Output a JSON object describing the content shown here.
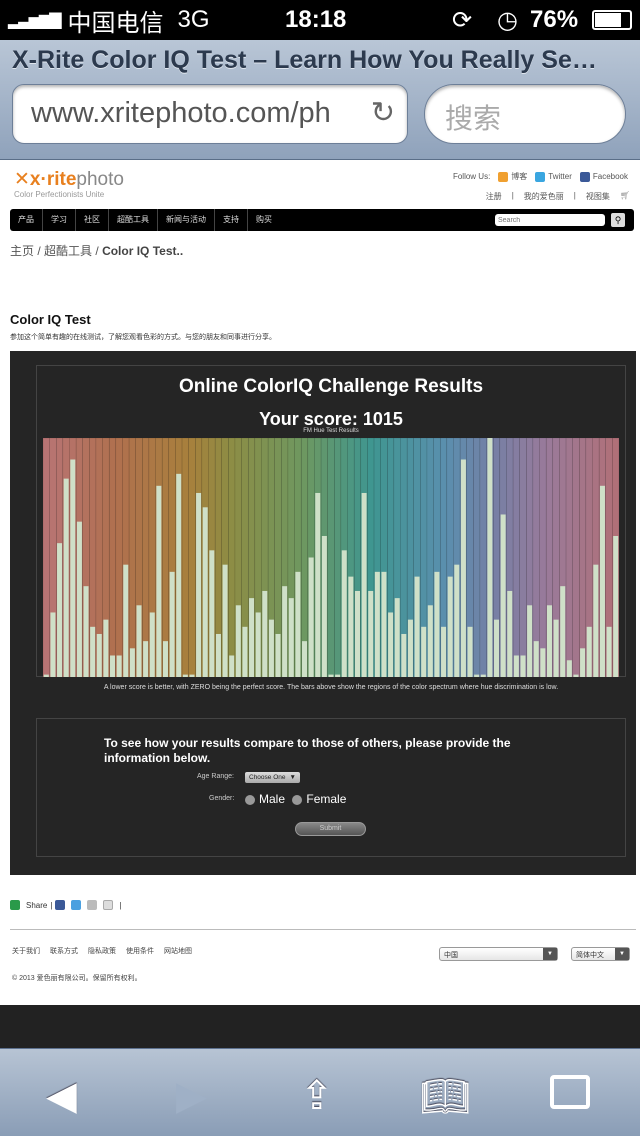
{
  "status_bar": {
    "carrier": "中国电信",
    "network": "3G",
    "time": "18:18",
    "battery": "76%"
  },
  "browser": {
    "page_title": "X-Rite Color IQ Test – Learn How You Really Se…",
    "url": "www.xritephoto.com/ph",
    "search_placeholder": "搜索"
  },
  "site": {
    "logo": {
      "brand": "x·rite",
      "product": "photo",
      "tagline": "Color Perfectionists Unite"
    },
    "follow_label": "Follow Us:",
    "follow": [
      "博客",
      "Twitter",
      "Facebook"
    ],
    "user_links": [
      "注册",
      "我的爱色丽",
      "视图集"
    ],
    "nav": [
      "产品",
      "学习",
      "社区",
      "超酷工具",
      "新闻与活动",
      "支持",
      "购买"
    ],
    "search_placeholder": "Search",
    "breadcrumb": [
      "主页",
      "超酷工具",
      "Color IQ Test.."
    ],
    "title": "Color IQ Test",
    "subtitle": "参加这个简单有趣的在线测试，了解您观看色彩的方式。与您的朋友和同事进行分享。"
  },
  "results": {
    "heading": "Online ColorIQ Challenge Results",
    "score": "Your score: 1015",
    "chart_title": "FM Hue Test Results",
    "note": "A lower score is better, with ZERO being the perfect score. The bars above show the regions of the color spectrum where hue discrimination is low."
  },
  "chart_data": {
    "type": "bar",
    "title": "FM Hue Test Results",
    "ylim": [
      0,
      100
    ],
    "grid": false,
    "values": [
      1,
      27,
      56,
      83,
      91,
      65,
      38,
      21,
      18,
      24,
      9,
      9,
      47,
      12,
      30,
      15,
      27,
      80,
      15,
      44,
      85,
      1,
      1,
      77,
      71,
      53,
      18,
      47,
      9,
      30,
      21,
      33,
      27,
      36,
      24,
      18,
      38,
      33,
      44,
      15,
      50,
      77,
      59,
      1,
      1,
      53,
      42,
      36,
      77,
      36,
      44,
      44,
      27,
      33,
      18,
      24,
      42,
      21,
      30,
      44,
      21,
      42,
      47,
      91,
      21,
      1,
      1,
      100,
      24,
      68,
      36,
      9,
      9,
      30,
      15,
      12,
      30,
      24,
      38,
      7,
      1,
      12,
      21,
      47,
      80,
      21,
      59
    ],
    "bar_color": "#cfe0c8"
  },
  "form": {
    "prompt": "To see how your results compare to those of others, please provide the information below.",
    "age_label": "Age Range:",
    "age_value": "Choose One",
    "gender_label": "Gender:",
    "male": "Male",
    "female": "Female",
    "submit": "Submit"
  },
  "footer": {
    "share": "Share",
    "links": [
      "关于我们",
      "联系方式",
      "隐私政策",
      "使用条件",
      "网站地图"
    ],
    "country": "中国",
    "language": "简体中文",
    "copyright": "© 2013  爱色丽有限公司。保留所有权利。"
  }
}
